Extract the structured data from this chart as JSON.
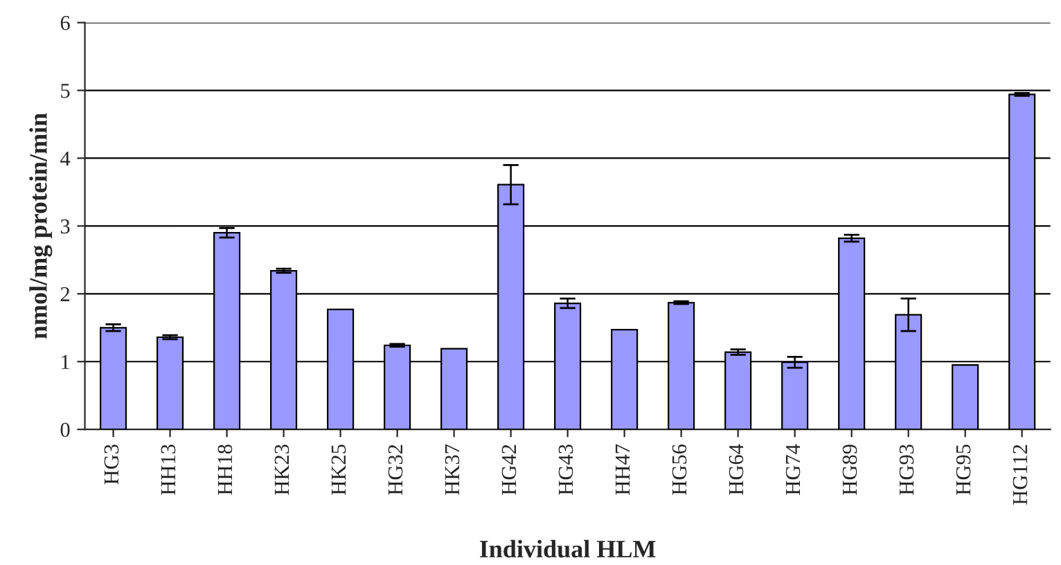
{
  "chart_data": {
    "type": "bar",
    "xlabel": "Individual HLM",
    "ylabel": "nmol/mg protein/min",
    "categories": [
      "HG3",
      "HH13",
      "HH18",
      "HK23",
      "HK25",
      "HG32",
      "HK37",
      "HG42",
      "HG43",
      "HH47",
      "HG56",
      "HG64",
      "HG74",
      "HG89",
      "HG93",
      "HG95",
      "HG112"
    ],
    "values": [
      1.5,
      1.36,
      2.9,
      2.34,
      1.77,
      1.24,
      1.19,
      3.61,
      1.86,
      1.47,
      1.87,
      1.14,
      0.99,
      2.82,
      1.69,
      0.95,
      4.94
    ],
    "errors": [
      0.05,
      0.03,
      0.07,
      0.03,
      null,
      0.02,
      null,
      0.29,
      0.07,
      null,
      0.02,
      0.04,
      0.08,
      0.05,
      0.24,
      null,
      0.02
    ],
    "color": "#9999ff",
    "ylim": [
      0,
      6
    ],
    "yticks": [
      0,
      1,
      2,
      3,
      4,
      5,
      6
    ],
    "grid": "y",
    "legend": false
  }
}
